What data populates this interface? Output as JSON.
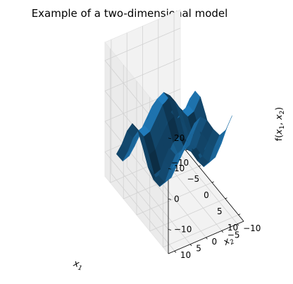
{
  "chart_data": {
    "type": "surface",
    "title": "Example of a two-dimensional model",
    "xlabel": "x1",
    "ylabel": "x2",
    "zlabel": "f(x1, x2)",
    "xlim": [
      -12,
      12
    ],
    "ylim": [
      -12,
      12
    ],
    "zlim": [
      -18,
      26
    ],
    "xticks": [
      -10,
      -5,
      0,
      5,
      10
    ],
    "yticks": [
      -10,
      -5,
      0,
      5,
      10
    ],
    "zticks": [
      -10,
      0,
      10,
      20
    ],
    "grid": true,
    "x": [
      -10,
      -8,
      -6,
      -4,
      -2,
      0,
      2,
      4,
      6,
      8,
      10
    ],
    "y": [
      -10,
      -8,
      -6,
      -4,
      -2,
      0,
      2,
      4,
      6,
      8,
      10
    ],
    "surface_color": "#1f77b4",
    "z": [
      [
        -7.7,
        -2.4,
        4.1,
        8.7,
        8.8,
        5.0,
        0.6,
        -1.2,
        2.3,
        9.4,
        15.5
      ],
      [
        -11.5,
        -6.2,
        0.3,
        4.9,
        5.0,
        1.2,
        -3.2,
        -5.0,
        -1.5,
        5.6,
        11.7
      ],
      [
        -12.4,
        -7.1,
        -0.6,
        4.0,
        4.1,
        0.3,
        -4.1,
        -5.9,
        -2.4,
        4.7,
        10.8
      ],
      [
        -9.5,
        -4.2,
        2.3,
        6.9,
        7.0,
        3.2,
        -1.2,
        -3.0,
        0.5,
        7.6,
        13.7
      ],
      [
        -5.7,
        -0.4,
        6.1,
        10.7,
        10.8,
        7.0,
        2.6,
        0.8,
        4.3,
        11.4,
        17.5
      ],
      [
        -3.7,
        1.6,
        8.1,
        12.7,
        12.8,
        9.0,
        4.6,
        2.8,
        6.3,
        13.4,
        19.5
      ],
      [
        -4.9,
        0.4,
        6.9,
        11.5,
        11.6,
        7.8,
        3.4,
        1.6,
        5.1,
        12.2,
        18.3
      ],
      [
        -8.4,
        -3.1,
        3.4,
        8.0,
        8.1,
        4.3,
        -0.1,
        -1.9,
        1.6,
        8.7,
        14.8
      ],
      [
        -11.9,
        -6.6,
        -0.1,
        4.5,
        4.6,
        0.8,
        -3.6,
        -5.4,
        -1.9,
        5.2,
        11.3
      ],
      [
        -12.7,
        -7.4,
        -0.9,
        3.7,
        3.8,
        0.0,
        -4.4,
        -6.2,
        -2.7,
        4.4,
        10.5
      ],
      [
        -9.5,
        -4.2,
        2.3,
        6.9,
        7.0,
        3.2,
        -1.2,
        -3.0,
        0.5,
        7.6,
        13.7
      ]
    ]
  }
}
